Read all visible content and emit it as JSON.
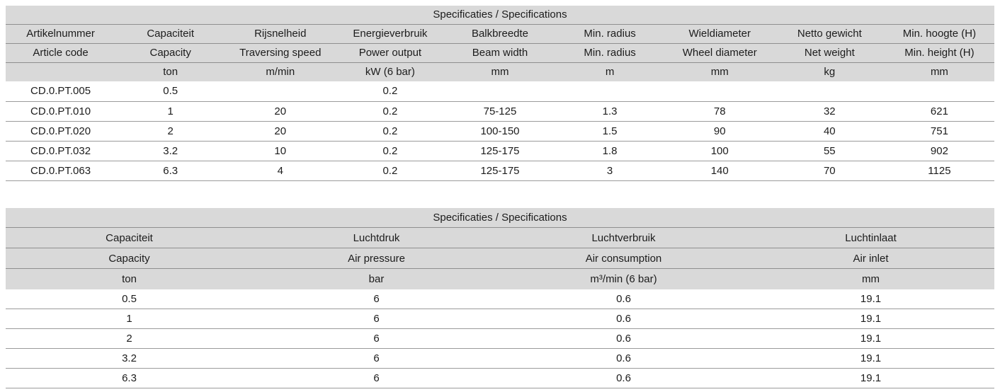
{
  "colors": {
    "header_bg": "#d9d9d9",
    "rule": "#8f8f8f",
    "text": "#1c1c1c",
    "page_bg": "#ffffff"
  },
  "table1": {
    "title": "Specificaties / Specifications",
    "columns": [
      {
        "nl": "Artikelnummer",
        "en": "Article code",
        "unit": ""
      },
      {
        "nl": "Capaciteit",
        "en": "Capacity",
        "unit": "ton"
      },
      {
        "nl": "Rijsnelheid",
        "en": "Traversing speed",
        "unit": "m/min"
      },
      {
        "nl": "Energieverbruik",
        "en": "Power output",
        "unit": "kW (6 bar)"
      },
      {
        "nl": "Balkbreedte",
        "en": "Beam width",
        "unit": "mm"
      },
      {
        "nl": "Min. radius",
        "en": "Min. radius",
        "unit": "m"
      },
      {
        "nl": "Wieldiameter",
        "en": "Wheel diameter",
        "unit": "mm"
      },
      {
        "nl": "Netto gewicht",
        "en": "Net weight",
        "unit": "kg"
      },
      {
        "nl": "Min. hoogte (H)",
        "en": "Min. height (H)",
        "unit": "mm"
      }
    ],
    "rows": [
      [
        "CD.0.PT.005",
        "0.5",
        "",
        "0.2",
        "",
        "",
        "",
        "",
        ""
      ],
      [
        "CD.0.PT.010",
        "1",
        "20",
        "0.2",
        "75-125",
        "1.3",
        "78",
        "32",
        "621"
      ],
      [
        "CD.0.PT.020",
        "2",
        "20",
        "0.2",
        "100-150",
        "1.5",
        "90",
        "40",
        "751"
      ],
      [
        "CD.0.PT.032",
        "3.2",
        "10",
        "0.2",
        "125-175",
        "1.8",
        "100",
        "55",
        "902"
      ],
      [
        "CD.0.PT.063",
        "6.3",
        "4",
        "0.2",
        "125-175",
        "3",
        "140",
        "70",
        "1125"
      ]
    ]
  },
  "table2": {
    "title": "Specificaties / Specifications",
    "columns": [
      {
        "nl": "Capaciteit",
        "en": "Capacity",
        "unit": "ton"
      },
      {
        "nl": "Luchtdruk",
        "en": "Air pressure",
        "unit": "bar"
      },
      {
        "nl": "Luchtverbruik",
        "en": "Air consumption",
        "unit": "m³/min (6 bar)"
      },
      {
        "nl": "Luchtinlaat",
        "en": "Air inlet",
        "unit": "mm"
      }
    ],
    "rows": [
      [
        "0.5",
        "6",
        "0.6",
        "19.1"
      ],
      [
        "1",
        "6",
        "0.6",
        "19.1"
      ],
      [
        "2",
        "6",
        "0.6",
        "19.1"
      ],
      [
        "3.2",
        "6",
        "0.6",
        "19.1"
      ],
      [
        "6.3",
        "6",
        "0.6",
        "19.1"
      ]
    ]
  }
}
